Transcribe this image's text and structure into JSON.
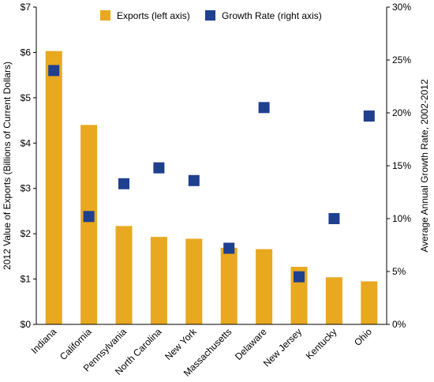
{
  "chart_data": {
    "type": "bar",
    "categories": [
      "Indiana",
      "California",
      "Pennsylvania",
      "North Carolina",
      "New York",
      "Massachusetts",
      "Delaware",
      "New Jersey",
      "Kentucky",
      "Ohio"
    ],
    "series": [
      {
        "name": "Exports (left axis)",
        "type": "bar",
        "axis": "left",
        "color": "#E8A820",
        "values": [
          6.03,
          4.4,
          2.17,
          1.93,
          1.89,
          1.69,
          1.66,
          1.27,
          1.04,
          0.95
        ]
      },
      {
        "name": "Growth Rate (right axis)",
        "type": "scatter",
        "axis": "right",
        "color": "#1F3F8F",
        "values": [
          24.0,
          10.2,
          13.3,
          14.8,
          13.6,
          7.2,
          20.5,
          4.5,
          10.0,
          19.7
        ]
      }
    ],
    "ylabel": "2012 Value of Exports (Billions of Current Dollars)",
    "y2label": "Average Annual Growth Rate, 2002-2012",
    "ylim": [
      0,
      7
    ],
    "y2lim": [
      0,
      30
    ],
    "yticks": [
      "$0",
      "$1",
      "$2",
      "$3",
      "$4",
      "$5",
      "$6",
      "$7"
    ],
    "y2ticks": [
      "0%",
      "5%",
      "10%",
      "15%",
      "20%",
      "25%",
      "30%"
    ],
    "legend_position": "top",
    "grid": false
  }
}
